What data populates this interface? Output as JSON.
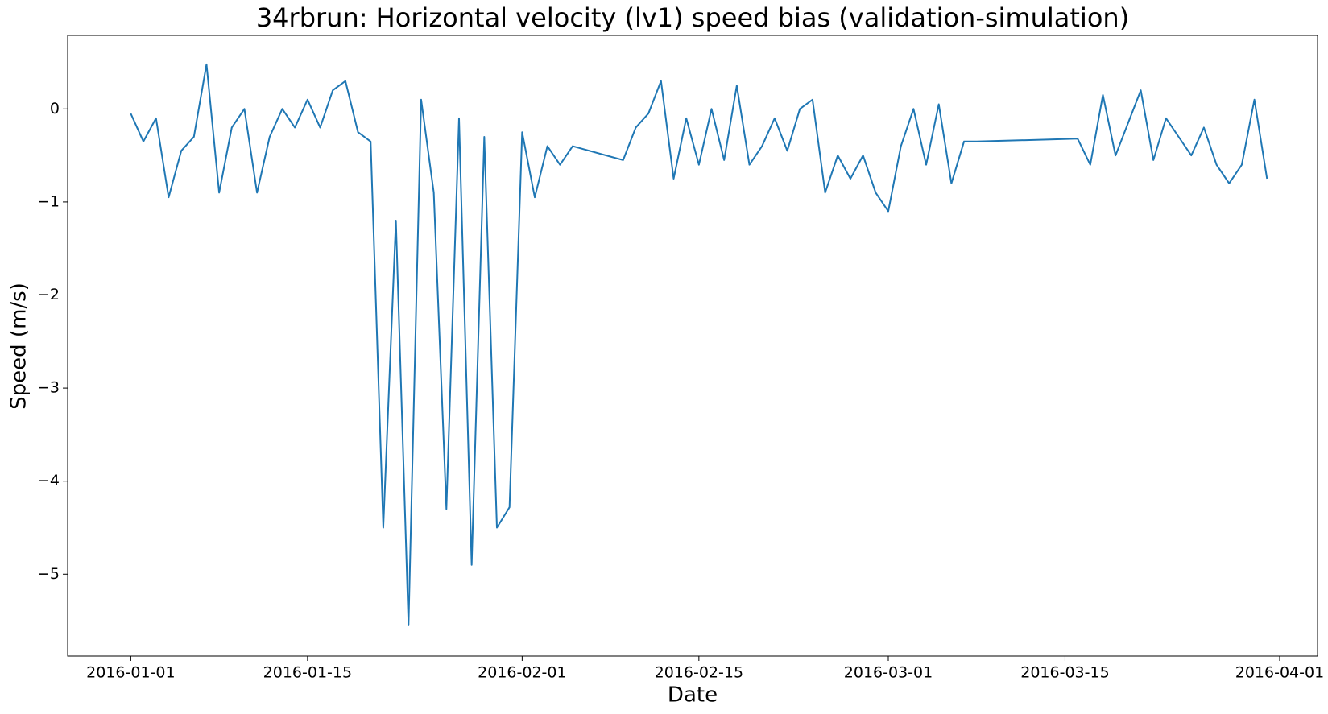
{
  "chart_data": {
    "type": "line",
    "title": "34rbrun: Horizontal velocity (lv1) speed bias (validation-simulation)",
    "x_label": "Date",
    "y_label": "Speed (m/s)",
    "x": [
      "2016-01-01",
      "2016-01-02",
      "2016-01-03",
      "2016-01-04",
      "2016-01-05",
      "2016-01-06",
      "2016-01-07",
      "2016-01-08",
      "2016-01-09",
      "2016-01-10",
      "2016-01-11",
      "2016-01-12",
      "2016-01-13",
      "2016-01-14",
      "2016-01-15",
      "2016-01-16",
      "2016-01-17",
      "2016-01-18",
      "2016-01-19",
      "2016-01-20",
      "2016-01-21",
      "2016-01-22",
      "2016-01-23",
      "2016-01-24",
      "2016-01-25",
      "2016-01-26",
      "2016-01-27",
      "2016-01-28",
      "2016-01-29",
      "2016-01-30",
      "2016-01-31",
      "2016-02-01",
      "2016-02-02",
      "2016-02-03",
      "2016-02-04",
      "2016-02-05",
      "2016-02-09",
      "2016-02-10",
      "2016-02-11",
      "2016-02-12",
      "2016-02-13",
      "2016-02-14",
      "2016-02-15",
      "2016-02-16",
      "2016-02-17",
      "2016-02-18",
      "2016-02-19",
      "2016-02-20",
      "2016-02-21",
      "2016-02-22",
      "2016-02-23",
      "2016-02-24",
      "2016-02-25",
      "2016-02-26",
      "2016-02-27",
      "2016-02-28",
      "2016-02-29",
      "2016-03-01",
      "2016-03-02",
      "2016-03-03",
      "2016-03-04",
      "2016-03-05",
      "2016-03-06",
      "2016-03-07",
      "2016-03-08",
      "2016-03-16",
      "2016-03-17",
      "2016-03-18",
      "2016-03-19",
      "2016-03-20",
      "2016-03-21",
      "2016-03-22",
      "2016-03-23",
      "2016-03-24",
      "2016-03-25",
      "2016-03-26",
      "2016-03-27",
      "2016-03-28",
      "2016-03-29",
      "2016-03-30",
      "2016-03-31"
    ],
    "series": [
      {
        "color": "#1f77b4",
        "values": [
          -0.05,
          -0.35,
          -0.1,
          -0.95,
          -0.45,
          -0.3,
          0.48,
          -0.9,
          -0.2,
          0.0,
          -0.9,
          -0.3,
          0.0,
          -0.2,
          0.1,
          -0.2,
          0.2,
          0.3,
          -0.25,
          -0.35,
          -4.5,
          -1.2,
          -5.55,
          0.1,
          -0.9,
          -4.3,
          -0.1,
          -4.9,
          -0.3,
          -4.5,
          -4.28,
          -0.25,
          -0.95,
          -0.4,
          -0.6,
          -0.4,
          -0.55,
          -0.2,
          -0.05,
          0.3,
          -0.75,
          -0.1,
          -0.6,
          0.0,
          -0.55,
          0.25,
          -0.6,
          -0.4,
          -0.1,
          -0.45,
          0.0,
          0.1,
          -0.9,
          -0.5,
          -0.75,
          -0.5,
          -0.9,
          -1.1,
          -0.4,
          0.0,
          -0.6,
          0.05,
          -0.8,
          -0.35,
          -0.35,
          -0.32,
          -0.6,
          0.15,
          -0.5,
          -0.15,
          0.2,
          -0.55,
          -0.1,
          -0.3,
          -0.5,
          -0.2,
          -0.6,
          -0.8,
          -0.6,
          0.1,
          -0.75
        ]
      }
    ],
    "xlim": [
      "2015-12-27",
      "2016-04-04"
    ],
    "xticks": [
      "2016-01-01",
      "2016-01-15",
      "2016-02-01",
      "2016-02-15",
      "2016-03-01",
      "2016-03-15",
      "2016-04-01"
    ],
    "ylim": [
      -5.88,
      0.79
    ],
    "yticks": [
      {
        "value": -5,
        "label": "−5"
      },
      {
        "value": -4,
        "label": "−4"
      },
      {
        "value": -3,
        "label": "−3"
      },
      {
        "value": -2,
        "label": "−2"
      },
      {
        "value": -1,
        "label": "−1"
      },
      0
    ]
  }
}
